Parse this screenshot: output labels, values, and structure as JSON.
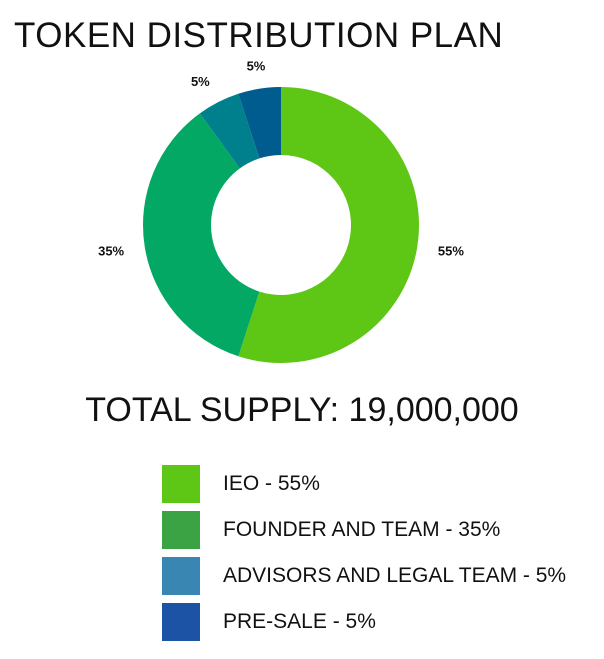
{
  "chart_data": {
    "type": "pie",
    "title": "TOKEN DISTRIBUTION PLAN",
    "subtitle": "TOTAL SUPPLY: 19,000,000",
    "categories": [
      "IEO",
      "FOUNDER AND TEAM",
      "ADVISORS AND LEGAL TEAM",
      "PRE-SALE"
    ],
    "values": [
      55,
      35,
      5,
      5
    ],
    "data_labels": [
      "55%",
      "35%",
      "5%",
      "5%"
    ],
    "slice_colors": [
      "#5ec614",
      "#03a864",
      "#007f8c",
      "#005b8f"
    ],
    "donut": true,
    "legend": {
      "placement": "bottom",
      "entries": [
        {
          "label": "IEO - 55%",
          "color": "#5ec614"
        },
        {
          "label": "FOUNDER AND TEAM - 35%",
          "color": "#3ba343"
        },
        {
          "label": "ADVISORS AND LEGAL TEAM - 5%",
          "color": "#3886b1"
        },
        {
          "label": "PRE-SALE - 5%",
          "color": "#1d53a5"
        }
      ]
    }
  }
}
